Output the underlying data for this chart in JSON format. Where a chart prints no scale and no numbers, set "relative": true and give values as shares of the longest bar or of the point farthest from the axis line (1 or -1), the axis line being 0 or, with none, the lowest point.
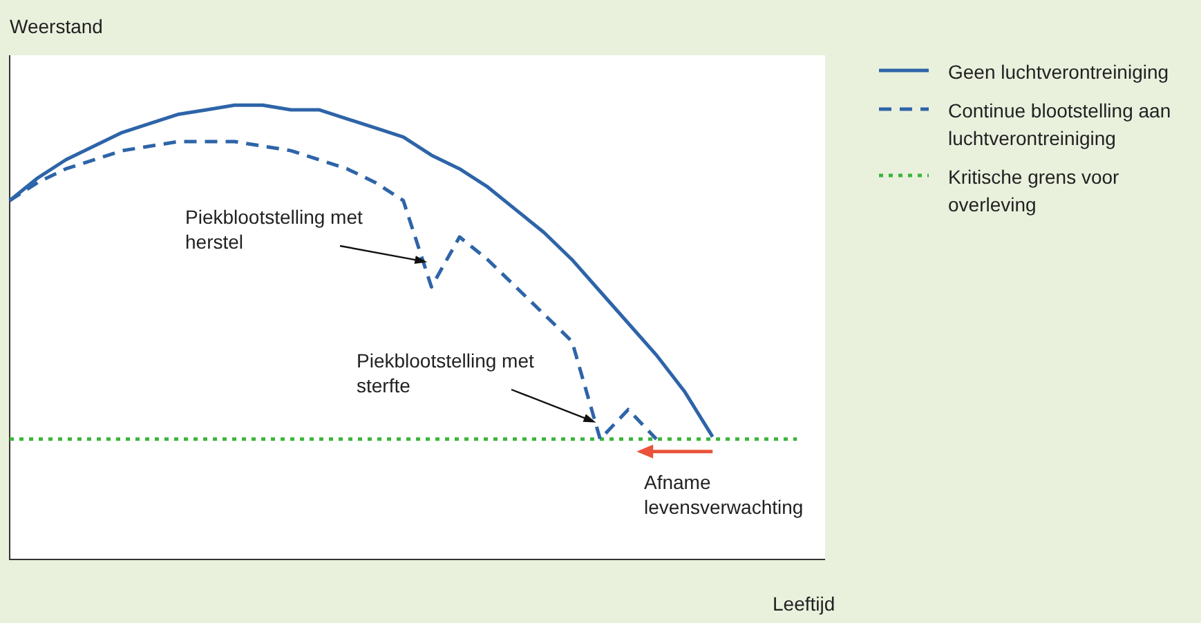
{
  "chart_data": {
    "type": "line",
    "relative": true,
    "xlabel": "Leeftijd",
    "ylabel": "Weerstand",
    "legend": "top right",
    "marker": "none",
    "categories": [
      null,
      null,
      null,
      null,
      null,
      null,
      null,
      null,
      null,
      null,
      null,
      null,
      null,
      null,
      null,
      null,
      null,
      null,
      null,
      null,
      null,
      null,
      null,
      null,
      null,
      null,
      null,
      null,
      null,
      null
    ],
    "series": [
      {
        "name": "Geen luchtverontreiniging",
        "color": "#2e64a8",
        "line_style": "solid",
        "values": [
          0.79,
          0.84,
          0.88,
          0.91,
          0.94,
          0.96,
          0.98,
          0.99,
          1,
          1,
          0.99,
          0.99,
          0.97,
          0.95,
          0.93,
          0.89,
          0.86,
          0.82,
          0.77,
          0.72,
          0.66,
          0.59,
          0.52,
          0.45,
          0.37,
          0.27,
          null,
          null,
          null,
          null
        ]
      },
      {
        "name": "Continue blootstelling aan luchtverontreiniging",
        "color": "#2e64a8",
        "line_style": "dashed",
        "values": [
          0.79,
          0.83,
          0.86,
          0.88,
          0.9,
          0.91,
          0.92,
          0.92,
          0.92,
          0.91,
          0.9,
          0.88,
          0.86,
          0.83,
          0.79,
          0.6,
          0.71,
          0.66,
          0.6,
          0.54,
          0.48,
          0.265,
          0.33,
          0.265,
          null,
          null,
          null,
          null,
          null,
          null
        ]
      },
      {
        "name": "Kritische grens voor overleving",
        "color": "#3cb43c",
        "line_style": "dotted",
        "values": [
          0.265,
          0.265,
          0.265,
          0.265,
          0.265,
          0.265,
          0.265,
          0.265,
          0.265,
          0.265,
          0.265,
          0.265,
          0.265,
          0.265,
          0.265,
          0.265,
          0.265,
          0.265,
          0.265,
          0.265,
          0.265,
          0.265,
          0.265,
          0.265,
          0.265,
          0.265,
          0.265,
          0.265,
          0.265,
          null
        ]
      }
    ],
    "annotations": [
      "Piekblootstelling met herstel",
      "Piekblootstelling met sterfte",
      "Afname levensverwachting"
    ]
  }
}
